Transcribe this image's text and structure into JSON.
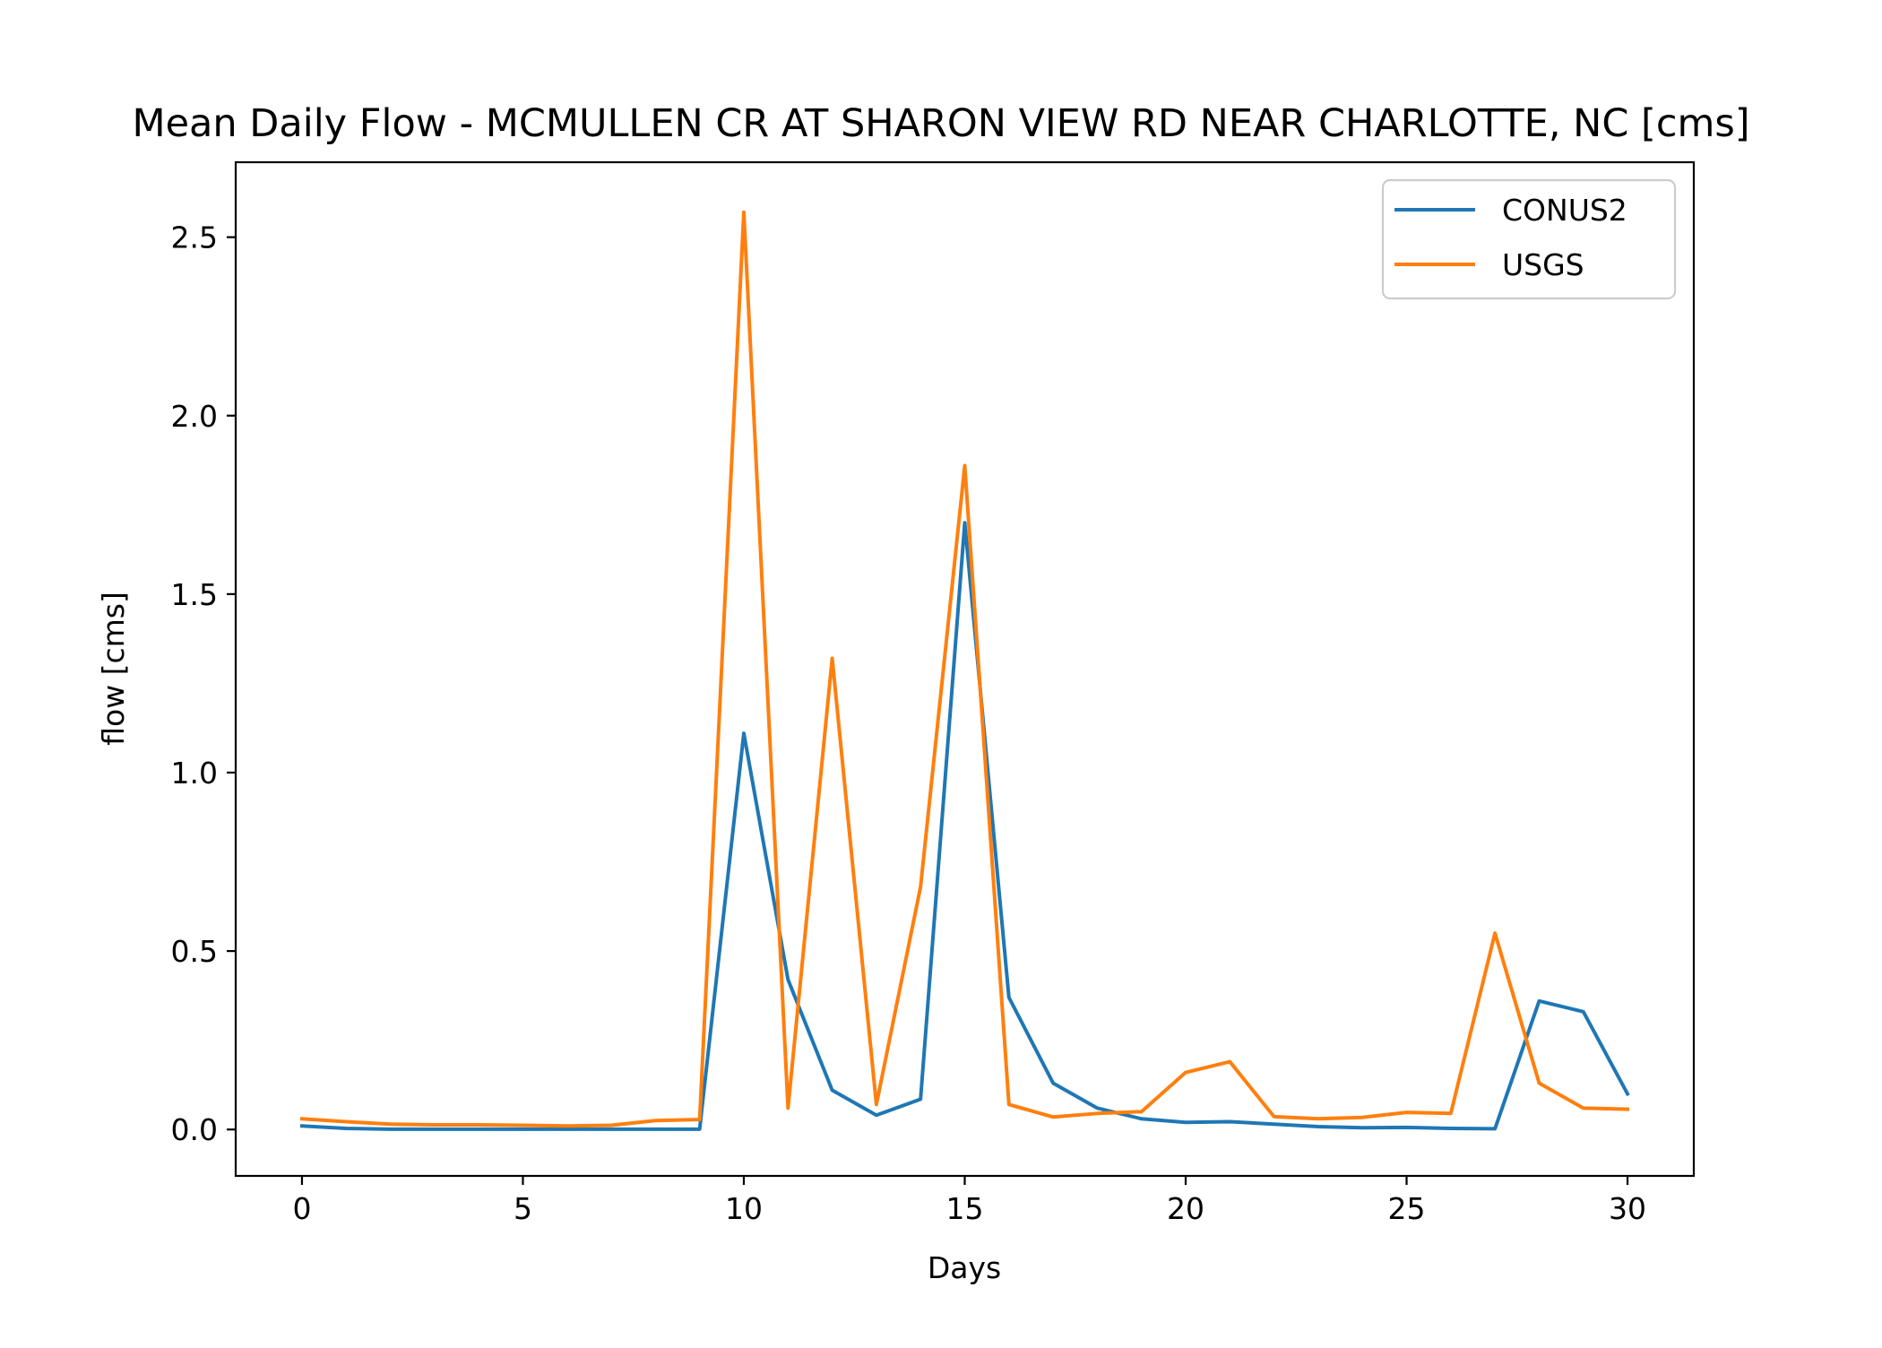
{
  "chart_data": {
    "type": "line",
    "title": "Mean Daily Flow - MCMULLEN CR AT SHARON VIEW RD NEAR CHARLOTTE, NC [cms]",
    "xlabel": "Days",
    "ylabel": "flow [cms]",
    "xlim": [
      -1.5,
      31.5
    ],
    "ylim": [
      -0.13,
      2.71
    ],
    "xticks": [
      0,
      5,
      10,
      15,
      20,
      25,
      30
    ],
    "xtick_labels": [
      "0",
      "5",
      "10",
      "15",
      "20",
      "25",
      "30"
    ],
    "yticks": [
      0.0,
      0.5,
      1.0,
      1.5,
      2.0,
      2.5
    ],
    "ytick_labels": [
      "0.0",
      "0.5",
      "1.0",
      "1.5",
      "2.0",
      "2.5"
    ],
    "grid": false,
    "legend_position": "top-right",
    "x": [
      0,
      1,
      2,
      3,
      4,
      5,
      6,
      7,
      8,
      9,
      10,
      11,
      12,
      13,
      14,
      15,
      16,
      17,
      18,
      19,
      20,
      21,
      22,
      23,
      24,
      25,
      26,
      27,
      28,
      29,
      30
    ],
    "series": [
      {
        "name": "CONUS2",
        "color": "#1f77b4",
        "values": [
          0.01,
          0.003,
          0.001,
          0.001,
          0.001,
          0.001,
          0.001,
          0.001,
          0.001,
          0.001,
          1.11,
          0.42,
          0.11,
          0.04,
          0.085,
          1.7,
          0.37,
          0.13,
          0.06,
          0.03,
          0.02,
          0.022,
          0.015,
          0.008,
          0.005,
          0.006,
          0.003,
          0.002,
          0.36,
          0.33,
          0.1
        ]
      },
      {
        "name": "USGS",
        "color": "#ff7f0e",
        "values": [
          0.03,
          0.022,
          0.015,
          0.013,
          0.013,
          0.012,
          0.01,
          0.012,
          0.025,
          0.028,
          2.57,
          0.06,
          1.32,
          0.07,
          0.68,
          1.86,
          0.07,
          0.035,
          0.045,
          0.05,
          0.16,
          0.19,
          0.036,
          0.03,
          0.034,
          0.048,
          0.045,
          0.55,
          0.13,
          0.06,
          0.057
        ]
      }
    ]
  }
}
